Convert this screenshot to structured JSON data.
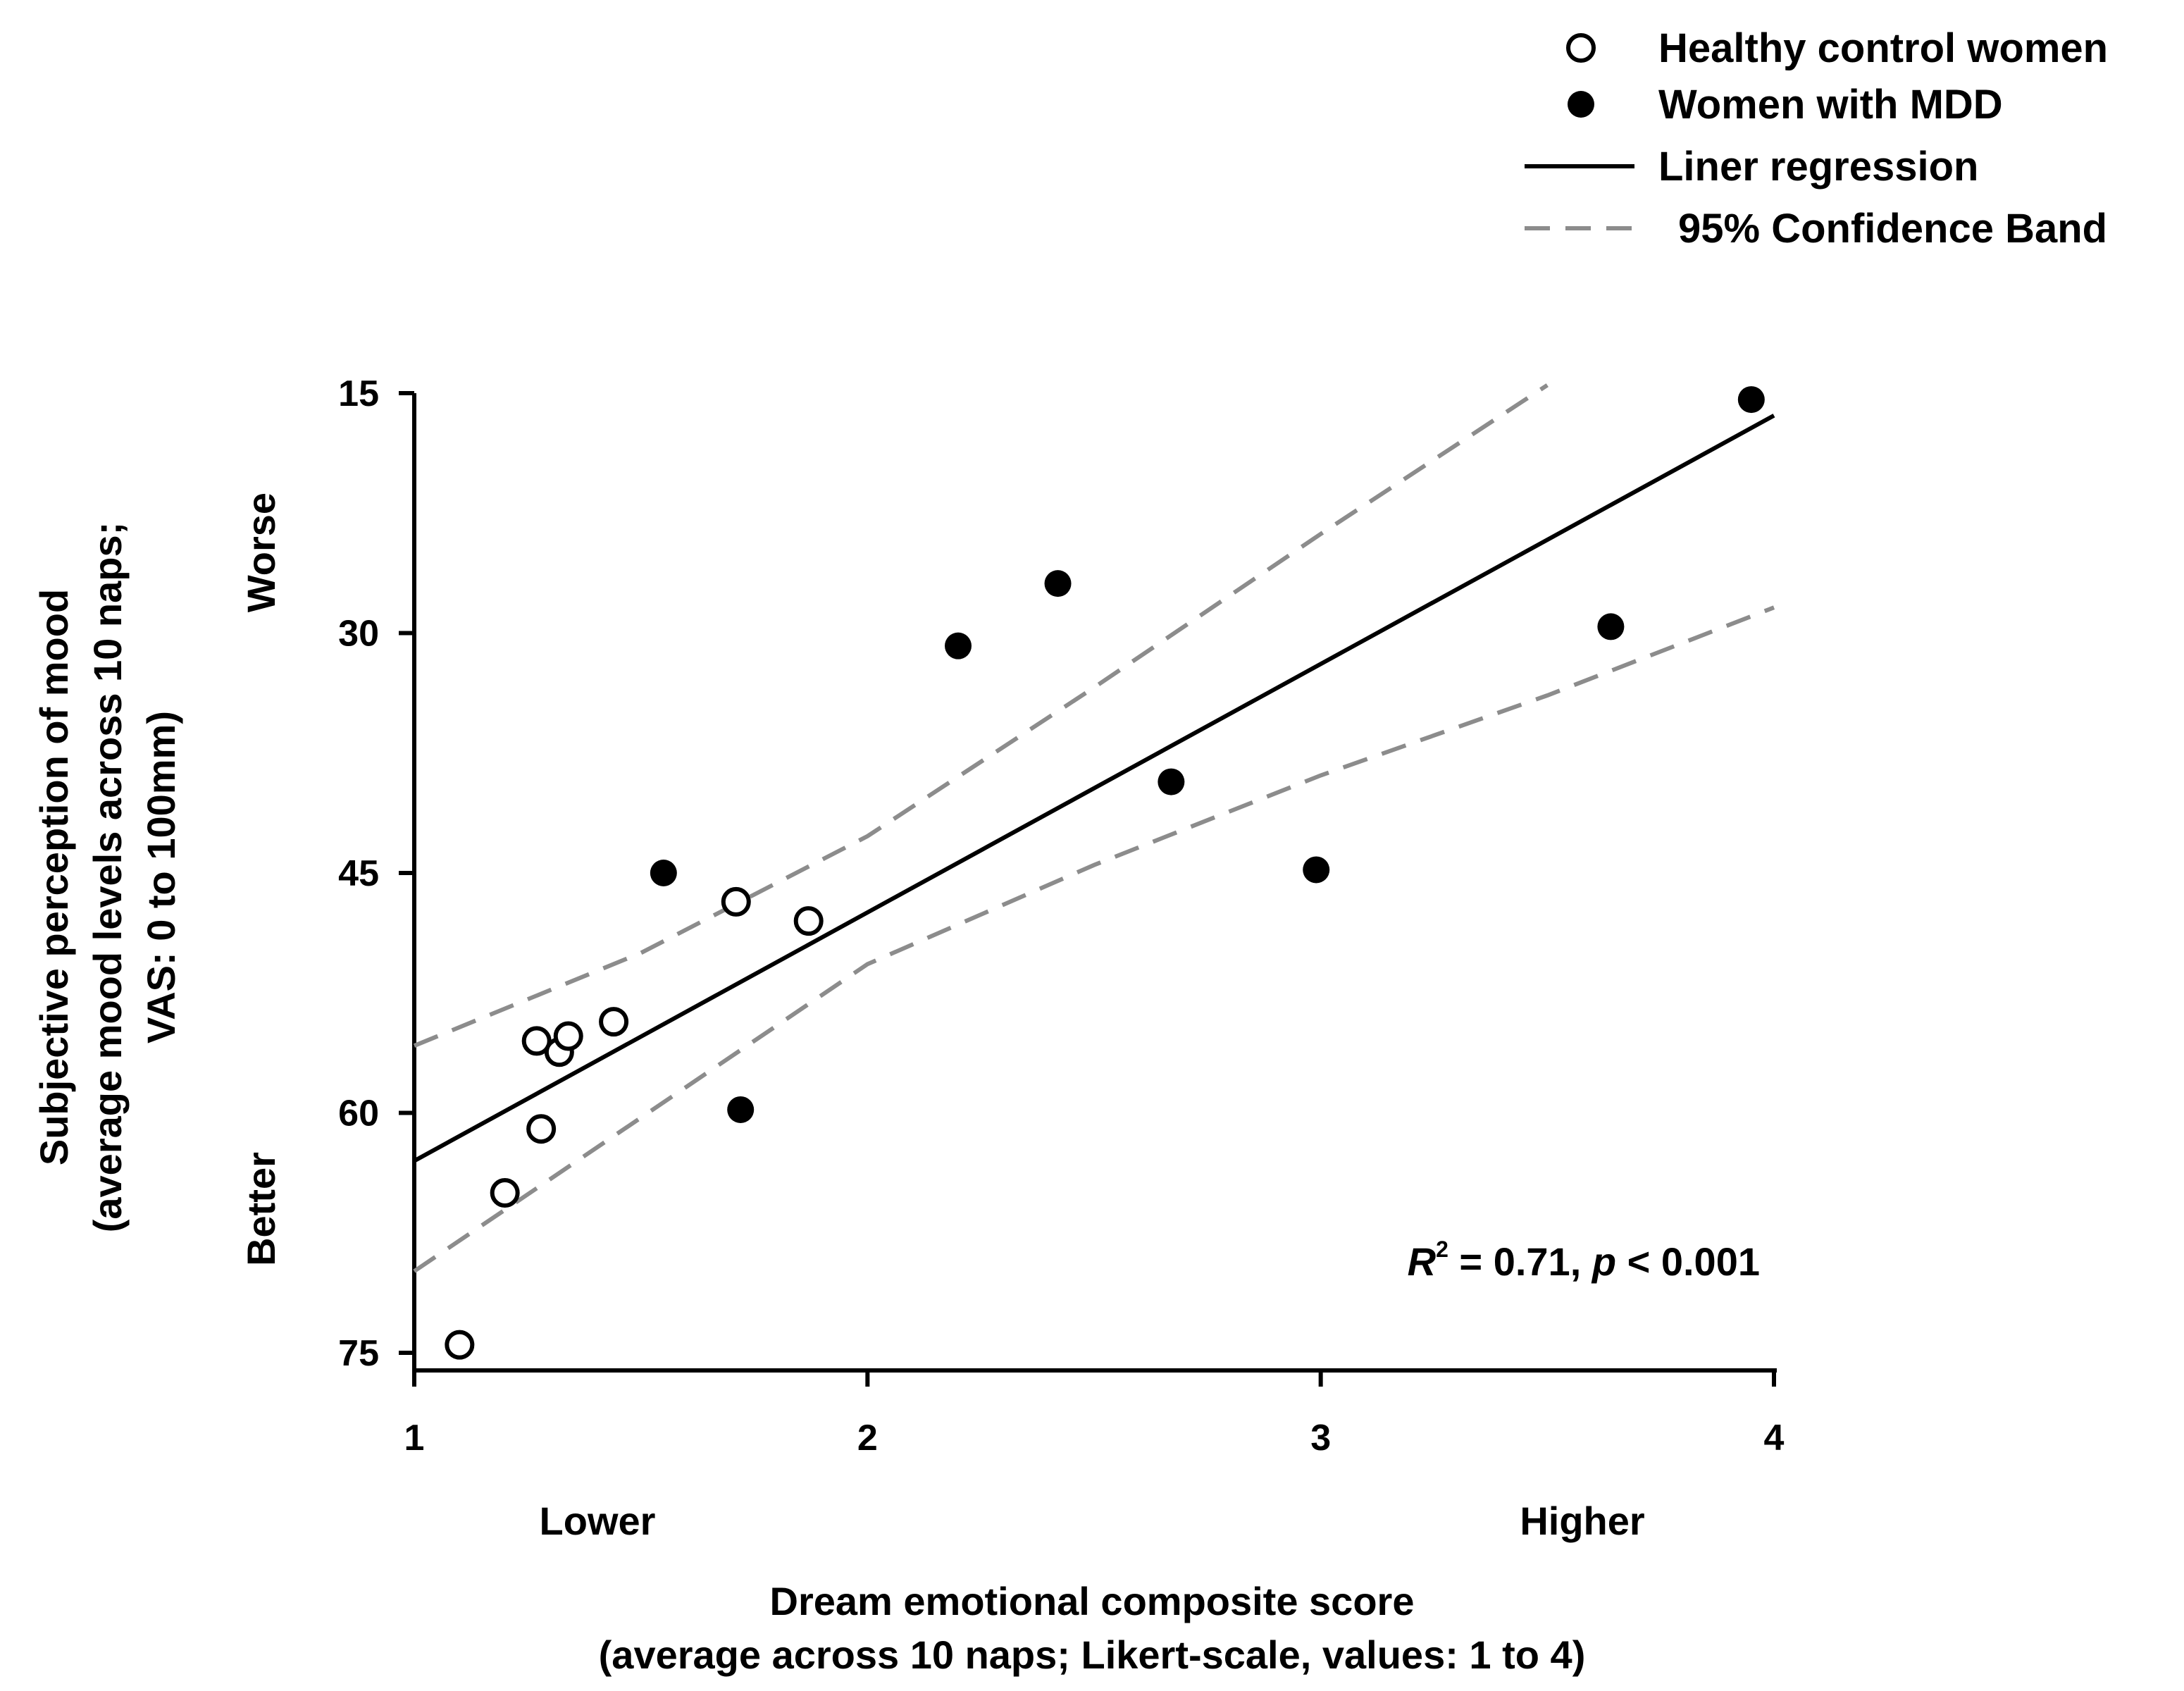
{
  "chart_data": {
    "type": "scatter",
    "title": "",
    "xlabel": [
      "Dream emotional composite score",
      "(average across 10 naps; Likert-scale, values: 1 to 4)"
    ],
    "ylabel": [
      "Subjective perception of mood",
      "(average mood levels across 10 naps;",
      "VAS: 0 to 100mm)"
    ],
    "x_range_labels": {
      "low": "Lower",
      "high": "Higher"
    },
    "y_range_labels": {
      "top": "Worse",
      "bottom": "Better"
    },
    "xlim": [
      1,
      4
    ],
    "ylim": [
      15,
      75
    ],
    "y_inverted": true,
    "xticks": [
      1,
      2,
      3,
      4
    ],
    "yticks": [
      15,
      30,
      45,
      60,
      75
    ],
    "legend": {
      "position": "top-right",
      "entries": [
        {
          "label": "Healthy control women",
          "marker": "open-circle"
        },
        {
          "label": "Women with MDD",
          "marker": "filled-circle"
        },
        {
          "label": "Liner regression",
          "marker": "solid-line"
        },
        {
          "label": "95% Confidence Band",
          "marker": "dashed-line"
        }
      ]
    },
    "series": [
      {
        "name": "Healthy control women",
        "marker": "open",
        "points": [
          {
            "x": 1.1,
            "y": 74.5
          },
          {
            "x": 1.2,
            "y": 65.0
          },
          {
            "x": 1.28,
            "y": 61.0
          },
          {
            "x": 1.27,
            "y": 55.5
          },
          {
            "x": 1.32,
            "y": 56.2
          },
          {
            "x": 1.34,
            "y": 55.2
          },
          {
            "x": 1.44,
            "y": 54.3
          },
          {
            "x": 1.71,
            "y": 46.8
          },
          {
            "x": 1.87,
            "y": 48.0
          }
        ]
      },
      {
        "name": "Women with MDD",
        "marker": "filled",
        "points": [
          {
            "x": 1.55,
            "y": 45.0
          },
          {
            "x": 1.72,
            "y": 59.8
          },
          {
            "x": 2.2,
            "y": 30.8
          },
          {
            "x": 2.42,
            "y": 26.9
          },
          {
            "x": 2.67,
            "y": 39.3
          },
          {
            "x": 2.99,
            "y": 44.8
          },
          {
            "x": 3.64,
            "y": 29.6
          },
          {
            "x": 3.95,
            "y": 15.4
          }
        ]
      }
    ],
    "regression": {
      "x": [
        1,
        4
      ],
      "y": [
        63.0,
        16.4
      ]
    },
    "confidence_band": {
      "upper": [
        [
          1.0,
          55.8
        ],
        [
          1.5,
          50.0
        ],
        [
          2.0,
          42.7
        ],
        [
          2.5,
          33.4
        ],
        [
          3.0,
          23.8
        ],
        [
          3.5,
          14.5
        ]
      ],
      "lower": [
        [
          1.0,
          69.9
        ],
        [
          1.5,
          60.3
        ],
        [
          2.0,
          50.7
        ],
        [
          2.5,
          44.5
        ],
        [
          3.0,
          38.9
        ],
        [
          3.5,
          33.9
        ],
        [
          4.0,
          28.4
        ]
      ]
    },
    "annotation": {
      "r_label": "R",
      "r_sup": "2",
      "text_mid": " = 0.71, ",
      "p_label": "p",
      "text_end": " < 0.001"
    },
    "colors": {
      "axis": "#000000",
      "regression": "#000000",
      "band": "#8c8c8c",
      "open_fill": "#ffffff",
      "filled": "#000000"
    }
  }
}
